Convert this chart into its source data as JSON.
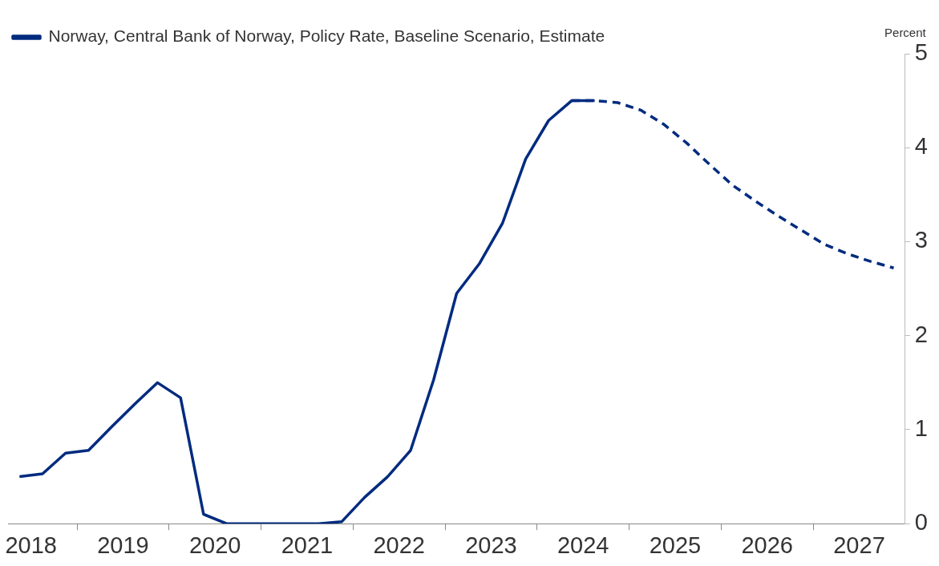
{
  "chart_data": {
    "type": "line",
    "ylabel": "Percent",
    "legend": "top left",
    "grid": false,
    "marker": "none",
    "xlim": [
      2018.25,
      2028
    ],
    "xticks": [
      {
        "value": 2018.5,
        "label": "2018"
      },
      {
        "value": 2019,
        "label": null
      },
      {
        "value": 2019.5,
        "label": "2019"
      },
      {
        "value": 2020,
        "label": null
      },
      {
        "value": 2020.5,
        "label": "2020"
      },
      {
        "value": 2021,
        "label": null
      },
      {
        "value": 2021.5,
        "label": "2021"
      },
      {
        "value": 2022,
        "label": null
      },
      {
        "value": 2022.5,
        "label": "2022"
      },
      {
        "value": 2023,
        "label": null
      },
      {
        "value": 2023.5,
        "label": "2023"
      },
      {
        "value": 2024,
        "label": null
      },
      {
        "value": 2024.5,
        "label": "2024"
      },
      {
        "value": 2025,
        "label": null
      },
      {
        "value": 2025.5,
        "label": "2025"
      },
      {
        "value": 2026,
        "label": null
      },
      {
        "value": 2026.5,
        "label": "2026"
      },
      {
        "value": 2027,
        "label": null
      },
      {
        "value": 2027.5,
        "label": "2027"
      }
    ],
    "ylim": [
      0,
      5
    ],
    "yticks": [
      0,
      1,
      2,
      3,
      4,
      5
    ],
    "series": [
      {
        "name": "Norway, Central Bank of Norway, Policy Rate, Baseline Scenario, Estimate",
        "color": "#002b7f",
        "line_style": "solid",
        "x": [
          2018.375,
          2018.625,
          2018.875,
          2019.125,
          2019.375,
          2019.625,
          2019.875,
          2020.125,
          2020.375,
          2020.625,
          2020.875,
          2021.125,
          2021.375,
          2021.625,
          2021.875,
          2022.125,
          2022.375,
          2022.625,
          2022.875,
          2023.125,
          2023.375,
          2023.625,
          2023.875,
          2024.125,
          2024.375,
          2024.625
        ],
        "values": [
          0.5,
          0.53,
          0.75,
          0.78,
          1.03,
          1.27,
          1.5,
          1.34,
          0.1,
          0,
          0,
          0,
          0,
          0,
          0.02,
          0.28,
          0.5,
          0.78,
          1.53,
          2.45,
          2.77,
          3.2,
          3.88,
          4.29,
          4.5,
          4.5
        ]
      },
      {
        "color": "#002b7f",
        "line_style": "dashed",
        "x": [
          2024.375,
          2024.625,
          2024.875,
          2025.125,
          2025.375,
          2025.625,
          2025.875,
          2026.125,
          2026.375,
          2026.625,
          2026.875,
          2027.125,
          2027.375,
          2027.625,
          2027.875
        ],
        "values": [
          4.5,
          4.5,
          4.48,
          4.4,
          4.25,
          4.05,
          3.82,
          3.6,
          3.43,
          3.27,
          3.12,
          2.97,
          2.87,
          2.79,
          2.72
        ]
      }
    ]
  }
}
